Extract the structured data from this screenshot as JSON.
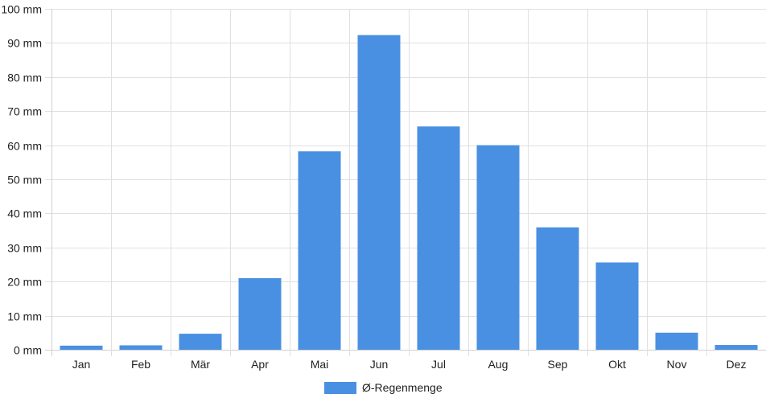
{
  "colors": {
    "bar": "#4a90e2",
    "grid": "#e0e0e0",
    "axis": "#d0d0d0",
    "text": "#222222"
  },
  "chart_data": {
    "type": "bar",
    "categories": [
      "Jan",
      "Feb",
      "Mär",
      "Apr",
      "Mai",
      "Jun",
      "Jul",
      "Aug",
      "Sep",
      "Okt",
      "Nov",
      "Dez"
    ],
    "series": [
      {
        "name": "Ø-Regenmenge",
        "values": [
          1.2,
          1.3,
          4.7,
          21.0,
          58.2,
          92.3,
          65.5,
          60.0,
          35.9,
          25.6,
          5.0,
          1.4
        ]
      }
    ],
    "ylim": [
      0,
      100
    ],
    "yticks": [
      0,
      10,
      20,
      30,
      40,
      50,
      60,
      70,
      80,
      90,
      100
    ],
    "ytick_labels": [
      "0 mm",
      "10 mm",
      "20 mm",
      "30 mm",
      "40 mm",
      "50 mm",
      "60 mm",
      "70 mm",
      "80 mm",
      "90 mm",
      "100 mm"
    ],
    "grid": true,
    "legend_position": "bottom"
  }
}
